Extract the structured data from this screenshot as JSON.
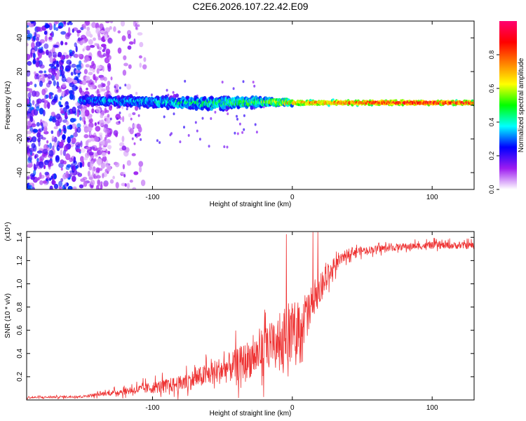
{
  "figure_title": "C2E6.2026.107.22.42.E09",
  "chart_data": [
    {
      "type": "heatmap",
      "title": "C2E6.2026.107.22.42.E09",
      "xlabel": "Height of straight line (km)",
      "ylabel": "Frequency (Hz)",
      "xlim": [
        -190,
        130
      ],
      "ylim": [
        -50,
        50
      ],
      "x_ticks": [
        -100,
        0,
        100
      ],
      "y_ticks": [
        -40,
        -20,
        0,
        20,
        40
      ],
      "colorbar": {
        "label": "Normalized spectral amplitude",
        "range": [
          0,
          1
        ],
        "ticks": [
          0.0,
          0.2,
          0.4,
          0.6,
          0.8
        ],
        "tick_labels": [
          "0.0",
          "0.2",
          "0.4",
          "0.6",
          "0.8"
        ],
        "colors": [
          "#ffffff",
          "#9d1cf0",
          "#0000ff",
          "#00ffff",
          "#00ff00",
          "#ffff00",
          "#ff8000",
          "#ff0000",
          "#ff0070"
        ]
      },
      "features": {
        "noise_region_x": [
          -190,
          -130
        ],
        "noise_amplitude_range": [
          0.05,
          0.3
        ],
        "carrier_start_x": -152,
        "carrier_center_hz": [
          [
            -152,
            3
          ],
          [
            -100,
            2
          ],
          [
            -60,
            1
          ],
          [
            -20,
            2
          ],
          [
            0,
            1.5
          ],
          [
            50,
            1.5
          ],
          [
            130,
            1.5
          ]
        ],
        "carrier_spread_hz": [
          [
            -152,
            3
          ],
          [
            -60,
            5
          ],
          [
            -20,
            3
          ],
          [
            0,
            2
          ],
          [
            130,
            1.5
          ]
        ],
        "carrier_peak_amplitude": [
          [
            -152,
            0.35
          ],
          [
            -100,
            0.4
          ],
          [
            -20,
            0.55
          ],
          [
            0,
            0.75
          ],
          [
            50,
            0.85
          ],
          [
            80,
            0.95
          ],
          [
            130,
            0.9
          ]
        ]
      }
    },
    {
      "type": "line",
      "title": "",
      "xlabel": "Height of straight line (km)",
      "ylabel": "SNR (10 * v/v)",
      "y_scale_label": "(x10⁴)",
      "xlim": [
        -190,
        130
      ],
      "ylim": [
        0,
        1.45
      ],
      "x_ticks": [
        -100,
        0,
        100
      ],
      "y_ticks": [
        0.2,
        0.4,
        0.6,
        0.8,
        1.0,
        1.2,
        1.4
      ],
      "color": "#ee3333",
      "series_envelope": {
        "x": [
          -190,
          -150,
          -130,
          -110,
          -80,
          -60,
          -40,
          -20,
          -10,
          0,
          10,
          20,
          30,
          40,
          60,
          80,
          100,
          130
        ],
        "mean": [
          0.02,
          0.03,
          0.06,
          0.09,
          0.14,
          0.22,
          0.3,
          0.42,
          0.5,
          0.58,
          0.72,
          0.95,
          1.15,
          1.27,
          1.3,
          1.32,
          1.33,
          1.33
        ],
        "noise": [
          0.008,
          0.01,
          0.02,
          0.04,
          0.07,
          0.1,
          0.14,
          0.2,
          0.24,
          0.24,
          0.22,
          0.14,
          0.06,
          0.04,
          0.03,
          0.03,
          0.03,
          0.03
        ]
      }
    }
  ]
}
